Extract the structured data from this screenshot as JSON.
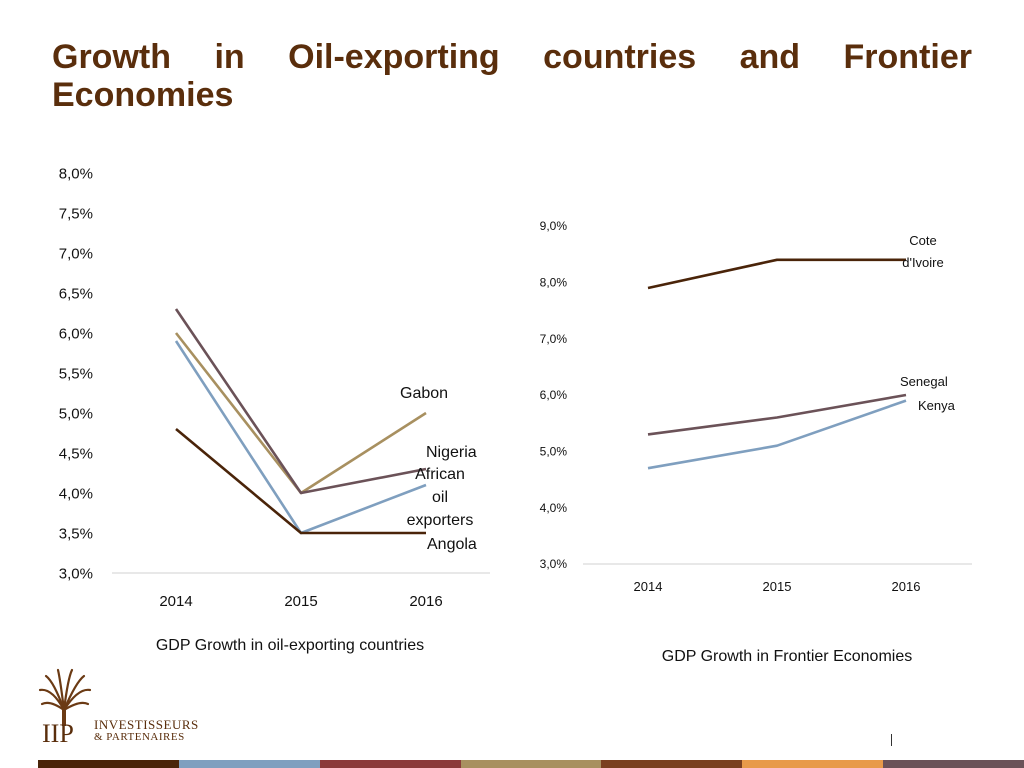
{
  "slide": {
    "title": "Growth in Oil-exporting countries and Frontier Economies"
  },
  "logo": {
    "name_line1": "INVESTISSEURS",
    "name_line2": "& PARTENAIRES",
    "monogram": "IIP",
    "icon": "palm-tree-icon"
  },
  "footer_colors": [
    "#4a2409",
    "#7f9fbf",
    "#8b3a3a",
    "#a89060",
    "#7a3f1f",
    "#e89a4a",
    "#6b5258"
  ],
  "chart_data": [
    {
      "type": "line",
      "title": "GDP Growth in oil-exporting countries",
      "categories": [
        "2014",
        "2015",
        "2016"
      ],
      "ylim": [
        3.0,
        8.0
      ],
      "yticks": [
        "3,0%",
        "3,5%",
        "4,0%",
        "4,5%",
        "5,0%",
        "5,5%",
        "6,0%",
        "6,5%",
        "7,0%",
        "7,5%",
        "8,0%"
      ],
      "grid": false,
      "series": [
        {
          "name": "Gabon",
          "values": [
            6.0,
            4.0,
            5.0
          ],
          "color": "#a89060",
          "label_lines": [
            "Gabon"
          ]
        },
        {
          "name": "Nigeria",
          "values": [
            6.3,
            4.0,
            4.3
          ],
          "color": "#6b5258",
          "label_lines": [
            "Nigeria"
          ]
        },
        {
          "name": "African oil exporters",
          "values": [
            5.9,
            3.5,
            4.1
          ],
          "color": "#7f9fbf",
          "label_lines": [
            "African",
            "oil",
            "exporters"
          ]
        },
        {
          "name": "Angola",
          "values": [
            4.8,
            3.5,
            3.5
          ],
          "color": "#4a2409",
          "label_lines": [
            "Angola"
          ]
        }
      ]
    },
    {
      "type": "line",
      "title": "GDP Growth in Frontier Economies",
      "categories": [
        "2014",
        "2015",
        "2016"
      ],
      "ylim": [
        3.0,
        9.0
      ],
      "yticks": [
        "3,0%",
        "4,0%",
        "5,0%",
        "6,0%",
        "7,0%",
        "8,0%",
        "9,0%"
      ],
      "grid": false,
      "series": [
        {
          "name": "Cote d'Ivoire",
          "values": [
            7.9,
            8.4,
            8.4
          ],
          "color": "#4a2409",
          "label_lines": [
            "Cote",
            "d'Ivoire"
          ]
        },
        {
          "name": "Senegal",
          "values": [
            5.3,
            5.6,
            6.0
          ],
          "color": "#6b5258",
          "label_lines": [
            "Senegal"
          ]
        },
        {
          "name": "Kenya",
          "values": [
            4.7,
            5.1,
            5.9
          ],
          "color": "#7f9fbf",
          "label_lines": [
            "Kenya"
          ]
        }
      ]
    }
  ]
}
